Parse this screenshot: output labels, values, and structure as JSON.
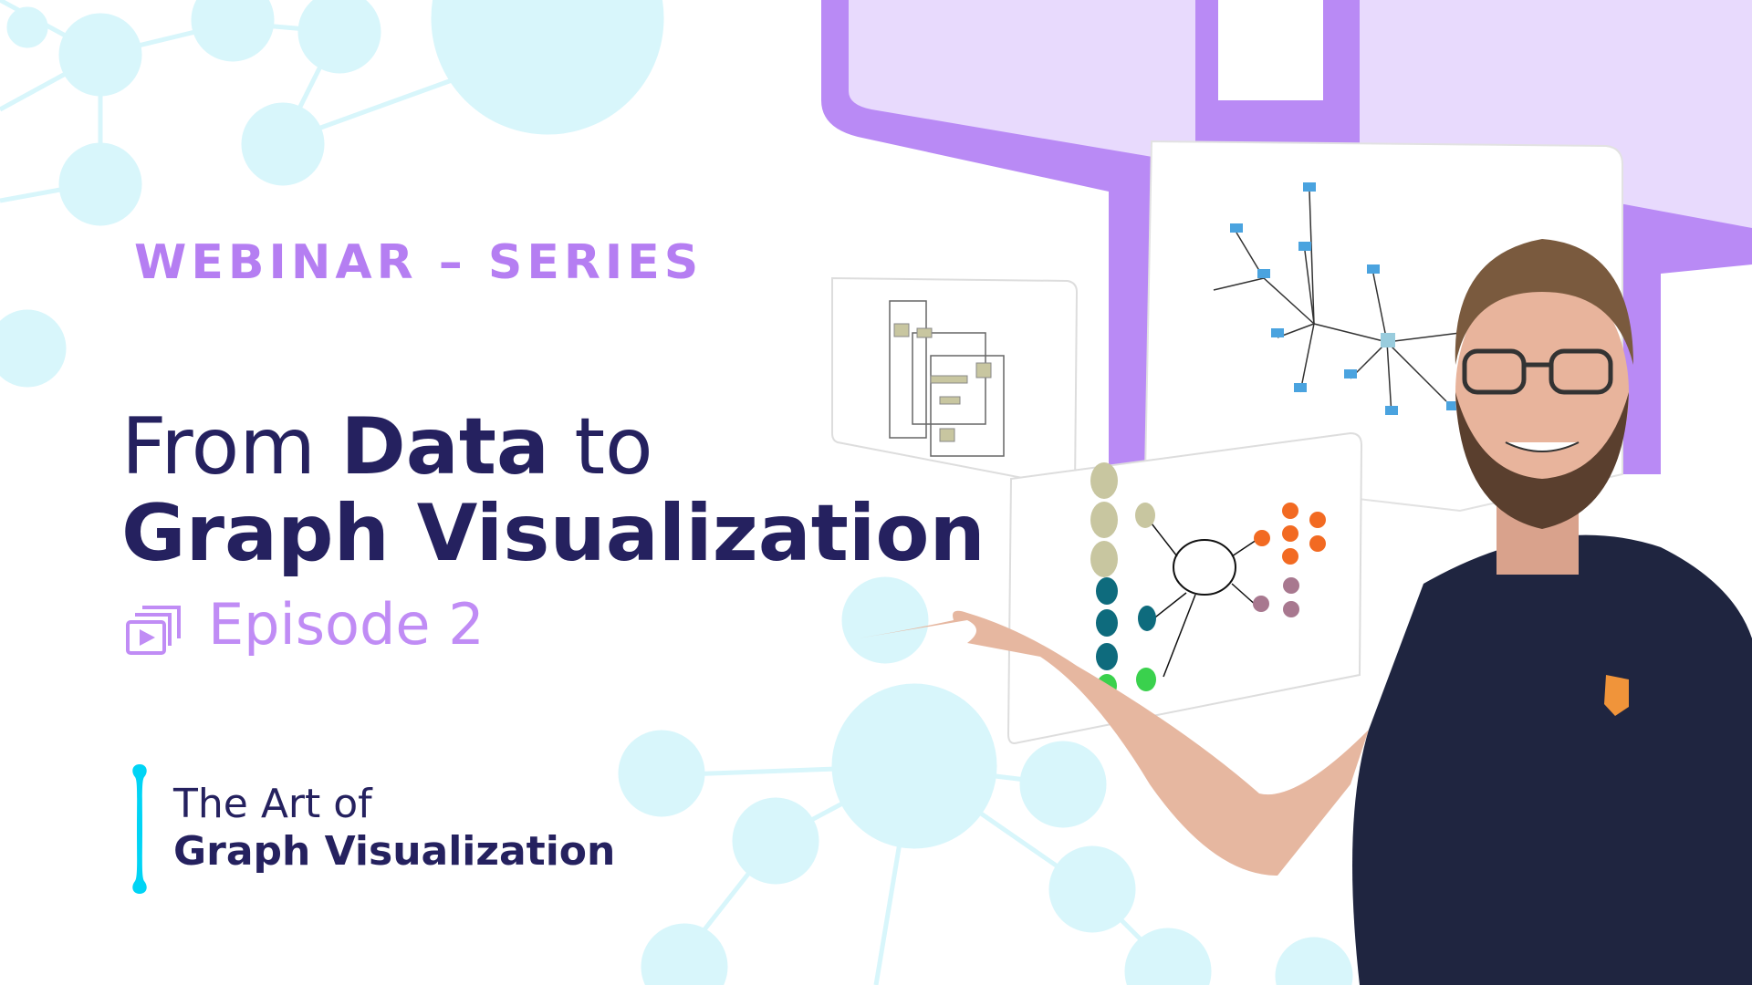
{
  "header": {
    "series_label": "WEBINAR – SERIES"
  },
  "title": {
    "line1_prefix": "From ",
    "line1_bold": "Data",
    "line1_suffix": " to",
    "line2": "Graph Visualization"
  },
  "episode": {
    "icon": "video-playlist-icon",
    "label": "Episode 2"
  },
  "brand": {
    "line1": "The Art of",
    "line2": "Graph Visualization"
  },
  "colors": {
    "navy": "#25215f",
    "lavender": "#b57ef2",
    "episode": "#c08cf5",
    "cyan_brand": "#00d4f5",
    "bubble": "#d8f6fb",
    "purple_frame": "#b98af5",
    "purple_light": "#e8dafd"
  }
}
